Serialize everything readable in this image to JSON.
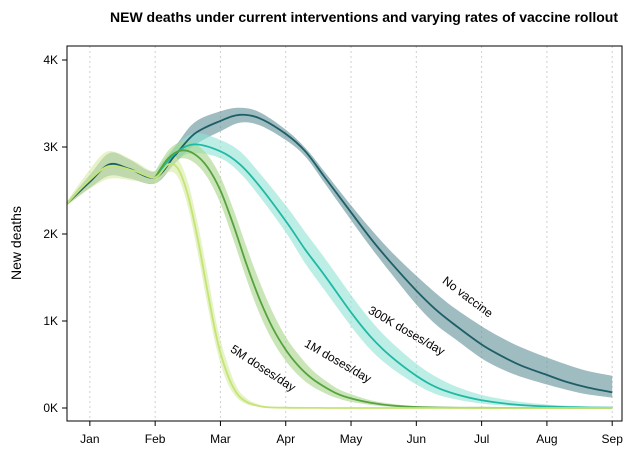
{
  "chart_data": {
    "type": "line",
    "title": "NEW deaths under current interventions and varying rates of vaccine rollout",
    "xlabel": "",
    "ylabel": "New deaths",
    "ylim": [
      0,
      4000
    ],
    "x_unit": "months since Jan 1",
    "xlim": [
      -0.35,
      8.15
    ],
    "x_ticks": [
      {
        "value": 0,
        "label": "Jan"
      },
      {
        "value": 1,
        "label": "Feb"
      },
      {
        "value": 2,
        "label": "Mar"
      },
      {
        "value": 3,
        "label": "Apr"
      },
      {
        "value": 4,
        "label": "May"
      },
      {
        "value": 5,
        "label": "Jun"
      },
      {
        "value": 6,
        "label": "Jul"
      },
      {
        "value": 7,
        "label": "Aug"
      },
      {
        "value": 8,
        "label": "Sep"
      }
    ],
    "y_ticks": [
      {
        "value": 0,
        "label": "0K"
      },
      {
        "value": 1000,
        "label": "1K"
      },
      {
        "value": 2000,
        "label": "2K"
      },
      {
        "value": 3000,
        "label": "3K"
      },
      {
        "value": 4000,
        "label": "4K"
      }
    ],
    "grid": "vertical dotted",
    "series": [
      {
        "name": "No vaccine",
        "color": "#1d5e67",
        "band_color": "#5f8f96",
        "x": [
          -0.35,
          0.0,
          0.3,
          0.6,
          1.0,
          1.3,
          1.6,
          2.0,
          2.3,
          2.6,
          3.0,
          3.3,
          3.6,
          4.0,
          4.3,
          4.6,
          5.0,
          5.3,
          5.6,
          6.0,
          6.3,
          6.6,
          7.0,
          7.3,
          7.6,
          8.0
        ],
        "values": [
          2350,
          2600,
          2800,
          2750,
          2650,
          2900,
          3150,
          3300,
          3370,
          3330,
          3150,
          2950,
          2650,
          2250,
          1950,
          1680,
          1350,
          1130,
          950,
          730,
          600,
          490,
          380,
          300,
          240,
          180
        ],
        "upper": [
          2370,
          2680,
          2930,
          2860,
          2720,
          3000,
          3280,
          3410,
          3450,
          3400,
          3200,
          2990,
          2710,
          2330,
          2060,
          1810,
          1520,
          1320,
          1140,
          940,
          810,
          700,
          580,
          500,
          430,
          370
        ],
        "lower": [
          2330,
          2530,
          2670,
          2640,
          2580,
          2810,
          3020,
          3180,
          3280,
          3250,
          3080,
          2890,
          2580,
          2160,
          1850,
          1560,
          1190,
          960,
          790,
          570,
          450,
          360,
          270,
          210,
          160,
          120
        ]
      },
      {
        "name": "300K doses/day",
        "color": "#1fb9a5",
        "band_color": "#8fe3d6",
        "x": [
          1.0,
          1.3,
          1.6,
          2.0,
          2.3,
          2.6,
          3.0,
          3.3,
          3.6,
          4.0,
          4.3,
          4.6,
          5.0,
          5.3,
          5.6,
          6.0,
          6.5,
          7.0,
          7.5,
          8.0
        ],
        "values": [
          2650,
          2920,
          3030,
          2950,
          2800,
          2550,
          2150,
          1820,
          1520,
          1100,
          820,
          600,
          370,
          240,
          160,
          90,
          40,
          18,
          8,
          3
        ],
        "upper": [
          2720,
          3000,
          3160,
          3080,
          2950,
          2700,
          2330,
          2020,
          1720,
          1300,
          1010,
          770,
          510,
          360,
          250,
          150,
          80,
          40,
          20,
          10
        ],
        "lower": [
          2580,
          2840,
          2930,
          2870,
          2700,
          2430,
          2020,
          1660,
          1350,
          940,
          670,
          470,
          270,
          160,
          100,
          50,
          20,
          8,
          3,
          1
        ]
      },
      {
        "name": "1M doses/day",
        "color": "#55a23f",
        "band_color": "#a6d588",
        "x": [
          1.0,
          1.2,
          1.4,
          1.6,
          1.8,
          2.0,
          2.2,
          2.4,
          2.6,
          2.8,
          3.0,
          3.2,
          3.4,
          3.6,
          3.8,
          4.0,
          4.3,
          4.6,
          5.0,
          5.5,
          6.0,
          7.0,
          8.0
        ],
        "values": [
          2650,
          2870,
          2960,
          2920,
          2770,
          2500,
          2100,
          1650,
          1250,
          920,
          670,
          480,
          340,
          240,
          160,
          110,
          60,
          30,
          12,
          4,
          2,
          1,
          0
        ],
        "upper": [
          2720,
          2960,
          3060,
          3040,
          2910,
          2660,
          2280,
          1850,
          1450,
          1100,
          820,
          610,
          440,
          320,
          220,
          160,
          90,
          50,
          20,
          8,
          4,
          2,
          1
        ],
        "lower": [
          2580,
          2790,
          2870,
          2820,
          2650,
          2350,
          1930,
          1480,
          1080,
          770,
          540,
          370,
          250,
          170,
          110,
          70,
          35,
          15,
          6,
          2,
          1,
          0,
          0
        ]
      },
      {
        "name": "5M doses/day",
        "color": "#c5e474",
        "band_color": "#d5eba0",
        "x": [
          -0.35,
          -0.1,
          0.2,
          0.4,
          0.7,
          1.0,
          1.2,
          1.35,
          1.5,
          1.65,
          1.8,
          1.95,
          2.1,
          2.25,
          2.4,
          2.55,
          2.7,
          3.0,
          3.5,
          4.0,
          5.0,
          6.0,
          7.0,
          8.0
        ],
        "values": [
          2350,
          2550,
          2750,
          2780,
          2720,
          2650,
          2800,
          2750,
          2450,
          1950,
          1350,
          780,
          400,
          170,
          70,
          30,
          10,
          3,
          1,
          0,
          0,
          0,
          0,
          0
        ],
        "upper": [
          2370,
          2640,
          2920,
          2940,
          2830,
          2720,
          2890,
          2860,
          2600,
          2130,
          1550,
          940,
          530,
          240,
          110,
          50,
          20,
          6,
          2,
          1,
          0,
          0,
          0,
          0
        ],
        "lower": [
          2330,
          2470,
          2610,
          2640,
          2610,
          2580,
          2710,
          2650,
          2320,
          1790,
          1190,
          650,
          300,
          120,
          45,
          18,
          6,
          2,
          0,
          0,
          0,
          0,
          0,
          0
        ]
      }
    ],
    "annotations": [
      {
        "text": "No vaccine",
        "series": "No vaccine",
        "at_x": 5.75,
        "at_y": 1240
      },
      {
        "text": "300K doses/day",
        "series": "300K doses/day",
        "at_x": 4.82,
        "at_y": 850
      },
      {
        "text": "1M doses/day",
        "series": "1M doses/day",
        "at_x": 3.77,
        "at_y": 500
      },
      {
        "text": "5M doses/day",
        "series": "5M doses/day",
        "at_x": 2.62,
        "at_y": 420
      }
    ]
  }
}
